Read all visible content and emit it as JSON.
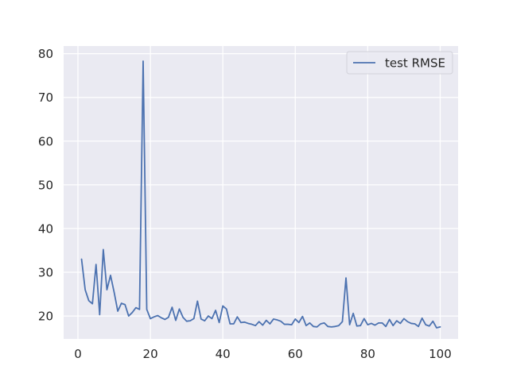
{
  "chart_data": {
    "type": "line",
    "title": "",
    "xlabel": "",
    "ylabel": "",
    "xlim": [
      -3.95,
      104.95
    ],
    "ylim": [
      14.75,
      81.75
    ],
    "xticks": [
      0,
      20,
      40,
      60,
      80,
      100
    ],
    "yticks": [
      20,
      30,
      40,
      50,
      60,
      70,
      80
    ],
    "grid": true,
    "legend_position": "top-right",
    "background": "#eaeaf2",
    "series": [
      {
        "name": "test RMSE",
        "color": "#4c72b0",
        "x": [
          1,
          2,
          3,
          4,
          5,
          6,
          7,
          8,
          9,
          10,
          11,
          12,
          13,
          14,
          15,
          16,
          17,
          18,
          19,
          20,
          21,
          22,
          23,
          24,
          25,
          26,
          27,
          28,
          29,
          30,
          31,
          32,
          33,
          34,
          35,
          36,
          37,
          38,
          39,
          40,
          41,
          42,
          43,
          44,
          45,
          46,
          47,
          48,
          49,
          50,
          51,
          52,
          53,
          54,
          55,
          56,
          57,
          58,
          59,
          60,
          61,
          62,
          63,
          64,
          65,
          66,
          67,
          68,
          69,
          70,
          71,
          72,
          73,
          74,
          75,
          76,
          77,
          78,
          79,
          80,
          81,
          82,
          83,
          84,
          85,
          86,
          87,
          88,
          89,
          90,
          91,
          92,
          93,
          94,
          95,
          96,
          97,
          98,
          99,
          100
        ],
        "y": [
          33.0,
          26.0,
          23.5,
          22.8,
          31.8,
          20.3,
          35.2,
          26.0,
          29.3,
          25.4,
          21.1,
          22.9,
          22.6,
          20.0,
          20.8,
          21.9,
          21.5,
          78.3,
          21.5,
          19.4,
          19.8,
          20.1,
          19.6,
          19.2,
          19.7,
          22.0,
          19.0,
          21.6,
          19.7,
          18.8,
          18.9,
          19.4,
          23.4,
          19.3,
          18.9,
          20.0,
          19.4,
          21.3,
          18.5,
          22.3,
          21.6,
          18.2,
          18.2,
          19.8,
          18.5,
          18.6,
          18.3,
          18.1,
          17.8,
          18.7,
          17.9,
          19.0,
          18.2,
          19.3,
          19.1,
          18.8,
          18.1,
          18.1,
          18.0,
          19.3,
          18.5,
          19.9,
          17.8,
          18.4,
          17.6,
          17.5,
          18.2,
          18.4,
          17.6,
          17.5,
          17.6,
          17.8,
          18.7,
          28.7,
          18.0,
          20.6,
          17.7,
          17.8,
          19.4,
          18.0,
          18.3,
          17.9,
          18.4,
          18.4,
          17.6,
          19.2,
          17.8,
          18.9,
          18.3,
          19.4,
          18.7,
          18.3,
          18.2,
          17.6,
          19.5,
          18.0,
          17.7,
          18.8,
          17.3,
          17.5
        ]
      }
    ]
  }
}
